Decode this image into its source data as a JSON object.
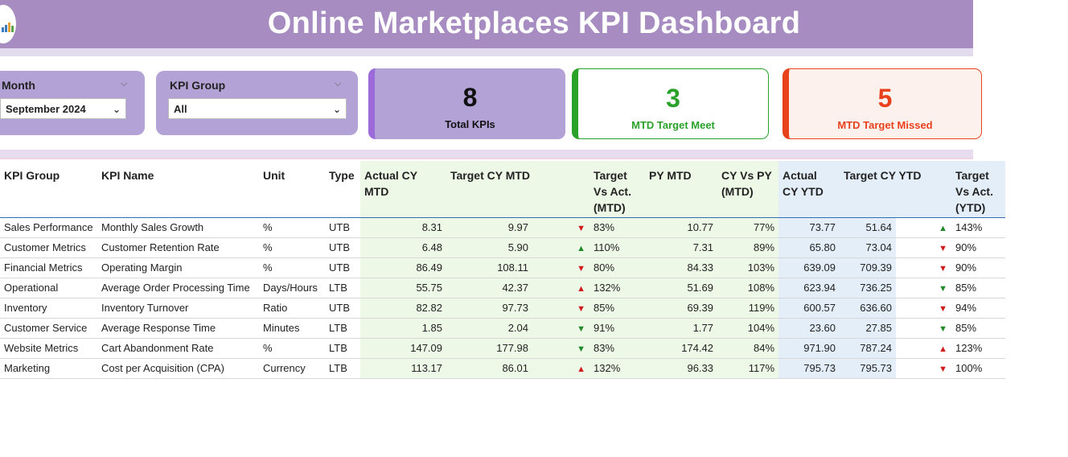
{
  "header": {
    "title": "Online Marketplaces KPI Dashboard"
  },
  "filters": {
    "month": {
      "label": "Month",
      "value": "September 2024"
    },
    "kpi_group": {
      "label": "KPI Group",
      "value": "All"
    }
  },
  "cards": {
    "total": {
      "value": "8",
      "caption": "Total KPIs"
    },
    "meet": {
      "value": "3",
      "caption": "MTD Target Meet"
    },
    "missed": {
      "value": "5",
      "caption": "MTD Target Missed"
    }
  },
  "colors": {
    "header": "#a68cc1",
    "meet": "#2aa22a",
    "missed": "#e8421d",
    "up": "#208a2a",
    "down": "#d01b1b"
  },
  "table": {
    "headers": {
      "kpi_group": "KPI Group",
      "kpi_name": "KPI Name",
      "unit": "Unit",
      "type": "Type",
      "actual_cy_mtd": "Actual CY MTD",
      "target_cy_mtd": "Target CY MTD",
      "target_vs_act_mtd": "Target Vs Act. (MTD)",
      "py_mtd": "PY MTD",
      "cy_vs_py_mtd": "CY Vs PY (MTD)",
      "actual_cy_ytd": "Actual CY YTD",
      "target_cy_ytd": "Target CY YTD",
      "target_vs_act_ytd": "Target Vs Act. (YTD)"
    },
    "rows": [
      {
        "group": "Sales Performance",
        "name": "Monthly Sales Growth",
        "unit": "%",
        "type": "UTB",
        "act_mtd": "8.31",
        "tgt_mtd": "9.97",
        "mtd_dir": "down",
        "mtd_pct": "83%",
        "py_mtd": "10.77",
        "cy_py": "77%",
        "act_ytd": "73.77",
        "tgt_ytd": "51.64",
        "ytd_dir": "up",
        "ytd_pct": "143%"
      },
      {
        "group": "Customer Metrics",
        "name": "Customer Retention Rate",
        "unit": "%",
        "type": "UTB",
        "act_mtd": "6.48",
        "tgt_mtd": "5.90",
        "mtd_dir": "up",
        "mtd_pct": "110%",
        "py_mtd": "7.31",
        "cy_py": "89%",
        "act_ytd": "65.80",
        "tgt_ytd": "73.04",
        "ytd_dir": "down",
        "ytd_pct": "90%"
      },
      {
        "group": "Financial Metrics",
        "name": "Operating Margin",
        "unit": "%",
        "type": "UTB",
        "act_mtd": "86.49",
        "tgt_mtd": "108.11",
        "mtd_dir": "down",
        "mtd_pct": "80%",
        "py_mtd": "84.33",
        "cy_py": "103%",
        "act_ytd": "639.09",
        "tgt_ytd": "709.39",
        "ytd_dir": "down",
        "ytd_pct": "90%"
      },
      {
        "group": "Operational",
        "name": "Average Order Processing Time",
        "unit": "Days/Hours",
        "type": "LTB",
        "act_mtd": "55.75",
        "tgt_mtd": "42.37",
        "mtd_dir": "up-red",
        "mtd_pct": "132%",
        "py_mtd": "51.69",
        "cy_py": "108%",
        "act_ytd": "623.94",
        "tgt_ytd": "736.25",
        "ytd_dir": "down-green",
        "ytd_pct": "85%"
      },
      {
        "group": "Inventory",
        "name": "Inventory Turnover",
        "unit": "Ratio",
        "type": "UTB",
        "act_mtd": "82.82",
        "tgt_mtd": "97.73",
        "mtd_dir": "down",
        "mtd_pct": "85%",
        "py_mtd": "69.39",
        "cy_py": "119%",
        "act_ytd": "600.57",
        "tgt_ytd": "636.60",
        "ytd_dir": "down",
        "ytd_pct": "94%"
      },
      {
        "group": "Customer Service",
        "name": "Average Response Time",
        "unit": "Minutes",
        "type": "LTB",
        "act_mtd": "1.85",
        "tgt_mtd": "2.04",
        "mtd_dir": "down-green",
        "mtd_pct": "91%",
        "py_mtd": "1.77",
        "cy_py": "104%",
        "act_ytd": "23.60",
        "tgt_ytd": "27.85",
        "ytd_dir": "down-green",
        "ytd_pct": "85%"
      },
      {
        "group": "Website Metrics",
        "name": "Cart Abandonment Rate",
        "unit": "%",
        "type": "LTB",
        "act_mtd": "147.09",
        "tgt_mtd": "177.98",
        "mtd_dir": "down-green",
        "mtd_pct": "83%",
        "py_mtd": "174.42",
        "cy_py": "84%",
        "act_ytd": "971.90",
        "tgt_ytd": "787.24",
        "ytd_dir": "up-red",
        "ytd_pct": "123%"
      },
      {
        "group": "Marketing",
        "name": "Cost per Acquisition (CPA)",
        "unit": "Currency",
        "type": "LTB",
        "act_mtd": "113.17",
        "tgt_mtd": "86.01",
        "mtd_dir": "up-red",
        "mtd_pct": "132%",
        "py_mtd": "96.33",
        "cy_py": "117%",
        "act_ytd": "795.73",
        "tgt_ytd": "795.73",
        "ytd_dir": "down",
        "ytd_pct": "100%"
      }
    ]
  }
}
